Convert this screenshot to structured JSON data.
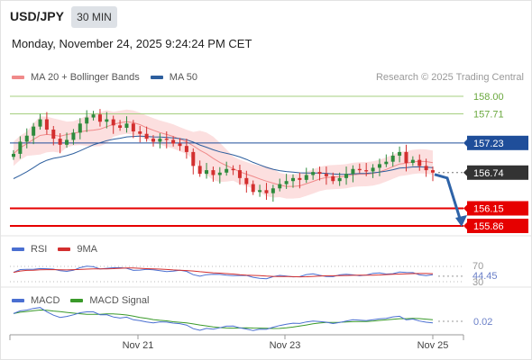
{
  "header": {
    "symbol": "USD/JPY",
    "timeframe": "30 MIN",
    "datetime": "Monday, November 24, 2025 9:24:24 PM CET"
  },
  "legend": {
    "items": [
      {
        "label": "MA 20 + Bollinger Bands",
        "color": "#f08a8a"
      },
      {
        "label": "MA 50",
        "color": "#2d5f9e"
      }
    ],
    "credit": "Research © 2025 Trading Central"
  },
  "colors": {
    "up": "#2e8b3d",
    "down": "#d32f2f",
    "band": "#fbd9d9",
    "ma20": "#f08a8a",
    "ma50": "#2d5f9e",
    "resistance": "#a5cf7f",
    "support": "#e60000",
    "pivot": "#1f4e9a",
    "arrow": "#2e63a8",
    "current": "#333333"
  },
  "rsi_legend": {
    "rsi": "RSI",
    "ma": "9MA"
  },
  "macd_legend": {
    "macd": "MACD",
    "signal": "MACD Signal"
  },
  "chart_data": {
    "type": "candlestick",
    "price_axis_range": [
      155.6,
      158.15
    ],
    "levels": [
      {
        "label": "158.00",
        "value": 158.0,
        "kind": "resistance"
      },
      {
        "label": "157.71",
        "value": 157.71,
        "kind": "resistance"
      },
      {
        "label": "157.23",
        "value": 157.23,
        "kind": "pivot"
      },
      {
        "label": "156.74",
        "value": 156.74,
        "kind": "current"
      },
      {
        "label": "156.15",
        "value": 156.15,
        "kind": "support"
      },
      {
        "label": "155.86",
        "value": 155.86,
        "kind": "support"
      }
    ],
    "x_ticks": [
      "Nov 21",
      "Nov 23",
      "Nov 25"
    ],
    "closes": [
      157.05,
      157.25,
      157.35,
      157.5,
      157.62,
      157.45,
      157.3,
      157.2,
      157.28,
      157.4,
      157.55,
      157.65,
      157.7,
      157.58,
      157.62,
      157.52,
      157.48,
      157.55,
      157.42,
      157.38,
      157.3,
      157.25,
      157.3,
      157.28,
      157.22,
      157.18,
      157.08,
      156.85,
      156.72,
      156.78,
      156.7,
      156.74,
      156.8,
      156.78,
      156.65,
      156.55,
      156.42,
      156.45,
      156.4,
      156.48,
      156.55,
      156.6,
      156.65,
      156.62,
      156.7,
      156.75,
      156.72,
      156.68,
      156.6,
      156.65,
      156.72,
      156.8,
      156.78,
      156.76,
      156.82,
      156.88,
      156.92,
      157.02,
      157.08,
      156.9,
      156.95,
      156.85,
      156.78,
      156.74
    ],
    "projection": {
      "from": 156.74,
      "to": 155.86
    },
    "rsi": {
      "levels": [
        "70",
        "44.45",
        "30"
      ]
    },
    "macd": {
      "value_label": "0.02"
    }
  }
}
